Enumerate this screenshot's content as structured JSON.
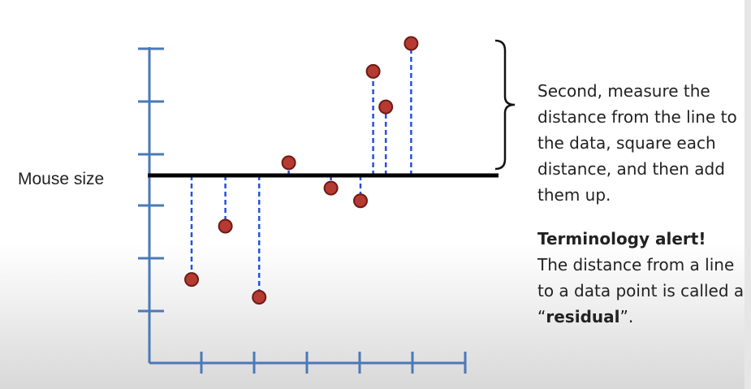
{
  "chart_data": {
    "type": "scatter",
    "ylabel": "Mouse size",
    "x_ticks": 6,
    "y_ticks": 6,
    "fit_line_y": 0,
    "points": [
      {
        "x": 1.0,
        "y": -2.05
      },
      {
        "x": 1.8,
        "y": -1.0
      },
      {
        "x": 2.6,
        "y": -2.4
      },
      {
        "x": 3.3,
        "y": 0.25
      },
      {
        "x": 4.3,
        "y": -0.25
      },
      {
        "x": 5.0,
        "y": -0.5
      },
      {
        "x": 5.3,
        "y": 2.05
      },
      {
        "x": 5.6,
        "y": 1.35
      },
      {
        "x": 6.2,
        "y": 2.6
      }
    ],
    "colors": {
      "point_fill": "#b53a32",
      "point_edge": "#6e1a14",
      "axis": "#4a79b8",
      "residual": "#2450e0",
      "fit_line": "#000000"
    }
  },
  "annotation": {
    "line1": "Second, measure the distance from the line to the data, square each distance, and then add them up.",
    "alert_title": "Terminology alert!",
    "alert_text_before": "The distance from a line to a data point is called a “",
    "alert_bold": "residual",
    "alert_text_after": "”."
  }
}
